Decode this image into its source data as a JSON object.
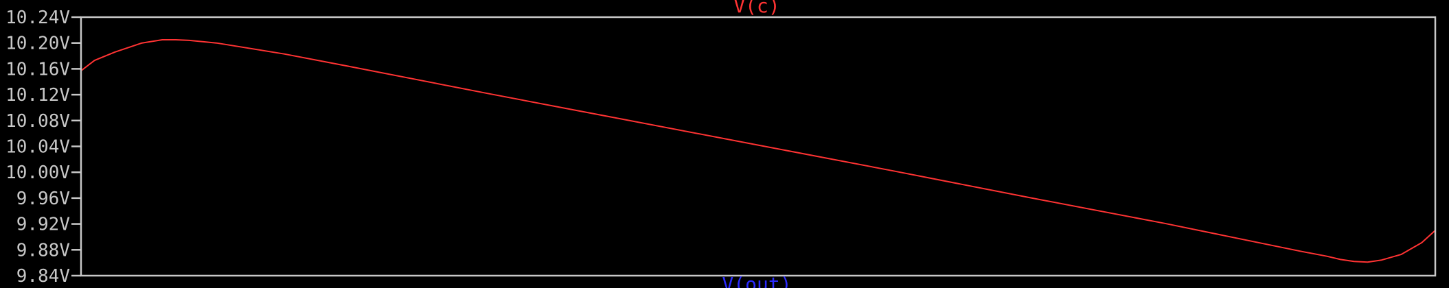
{
  "chart_data": {
    "type": "line",
    "title": "",
    "xlabel": "",
    "ylabel": "",
    "ylim": [
      9.84,
      10.24
    ],
    "xlim": [
      0,
      100
    ],
    "x_ticks": [],
    "y_ticks": [
      "10.24V",
      "10.20V",
      "10.16V",
      "10.12V",
      "10.08V",
      "10.04V",
      "10.00V",
      "9.96V",
      "9.92V",
      "9.88V",
      "9.84V"
    ],
    "grid": false,
    "background": "#000000",
    "frame_color": "#c8c8c8",
    "traces_shown": [
      {
        "name": "V(c)",
        "color": "#ff3333",
        "plotted": true
      },
      {
        "name": "V(out)",
        "color": "#2b2bff",
        "plotted": false
      }
    ],
    "series": [
      {
        "name": "V(c)",
        "color": "#ff3333",
        "x": [
          0,
          1,
          2.5,
          4.5,
          6,
          7,
          8,
          10,
          15,
          20,
          30,
          40,
          50,
          60,
          70,
          80,
          90,
          92,
          93,
          94,
          95,
          96,
          97.5,
          99,
          100
        ],
        "y": [
          10.157,
          10.173,
          10.186,
          10.2,
          10.205,
          10.205,
          10.204,
          10.2,
          10.183,
          10.163,
          10.122,
          10.082,
          10.042,
          10.002,
          9.961,
          9.921,
          9.878,
          9.87,
          9.865,
          9.862,
          9.861,
          9.864,
          9.873,
          9.891,
          9.91
        ]
      }
    ]
  }
}
